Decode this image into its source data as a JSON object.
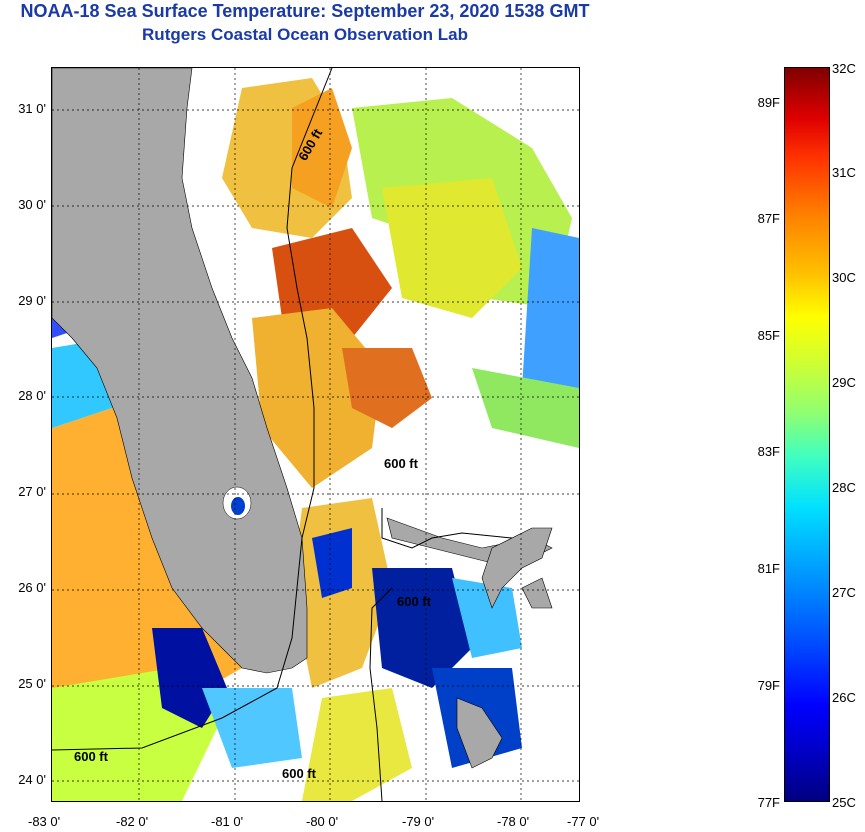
{
  "title": {
    "line1": "NOAA-18 Sea Surface Temperature:  September 23, 2020 1538 GMT",
    "line2": "Rutgers Coastal Ocean Observation Lab"
  },
  "map": {
    "lat_ticks": [
      "31 0'",
      "30 0'",
      "29 0'",
      "28 0'",
      "27 0'",
      "26 0'",
      "25 0'",
      "24 0'"
    ],
    "lon_ticks": [
      "-83 0'",
      "-82 0'",
      "-81 0'",
      "-80 0'",
      "-79 0'",
      "-78 0'",
      "-77 0'"
    ],
    "contour_label": "600 ft",
    "colors": {
      "land": "#a8a8a8",
      "missing": "#ffffff",
      "frame": "#000000"
    }
  },
  "colorbar": {
    "celsius": [
      "32C",
      "31C",
      "30C",
      "29C",
      "28C",
      "27C",
      "26C",
      "25C"
    ],
    "fahrenheit": [
      "89F",
      "87F",
      "85F",
      "83F",
      "81F",
      "79F",
      "77F"
    ],
    "scale_colors": [
      "#000080",
      "#0000ff",
      "#00a0ff",
      "#40ffc0",
      "#d0ff30",
      "#ffff00",
      "#ff8000",
      "#e00000",
      "#800000"
    ]
  }
}
